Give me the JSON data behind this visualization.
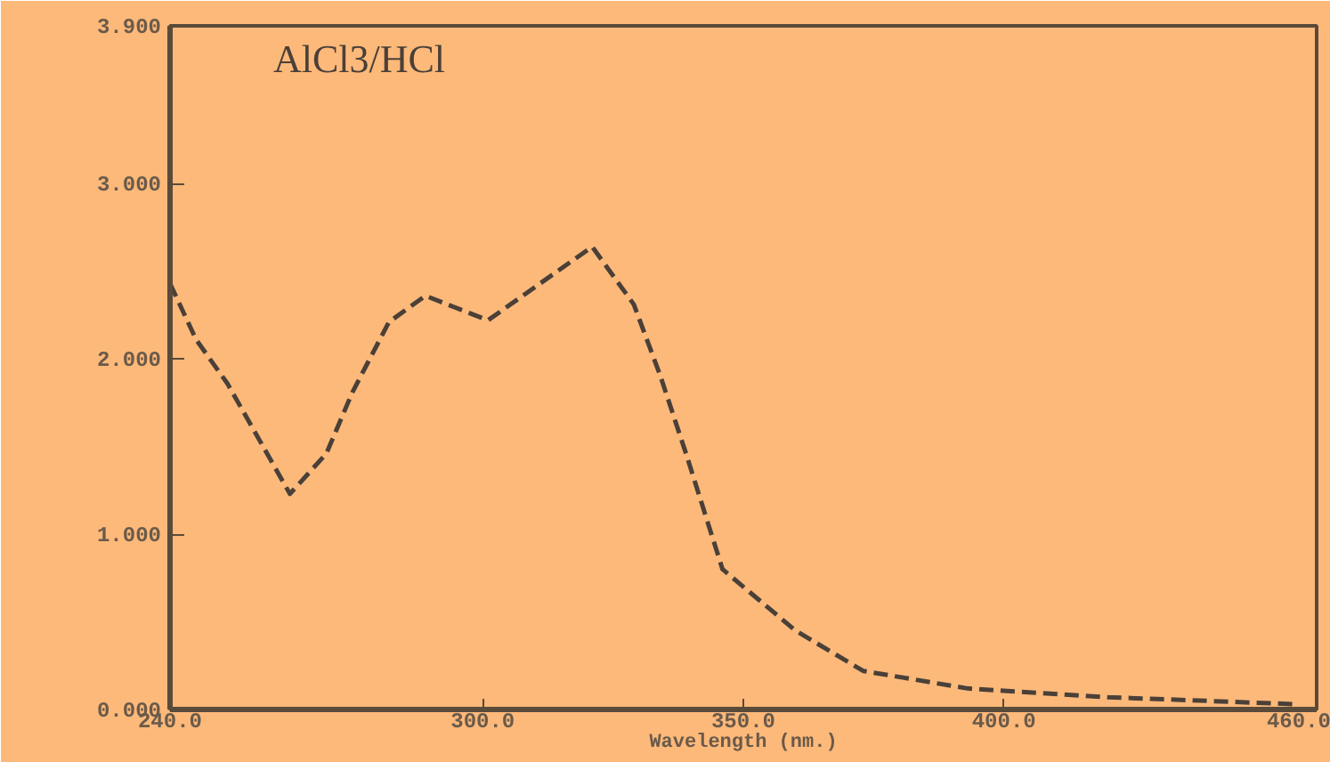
{
  "chart_data": {
    "type": "line",
    "title": "AlCl3/HCl",
    "xlabel": "Wavelength (nm.)",
    "x": [
      240,
      245,
      251,
      263,
      270,
      275,
      282,
      289,
      301,
      321,
      329,
      334,
      339,
      346,
      360,
      373,
      393,
      420,
      456
    ],
    "series": [
      {
        "color": "#4a4038",
        "values": [
          2.43,
          2.11,
          1.86,
          1.23,
          1.46,
          1.81,
          2.21,
          2.36,
          2.22,
          2.64,
          2.31,
          1.91,
          1.46,
          0.8,
          0.45,
          0.22,
          0.12,
          0.07,
          0.03
        ]
      }
    ],
    "xlim": [
      240,
      460
    ],
    "ylim": [
      0,
      3.9
    ],
    "xticks": [
      {
        "value": 240,
        "label": "240.0"
      },
      {
        "value": 300,
        "label": "300.0"
      },
      {
        "value": 350,
        "label": "350.0"
      },
      {
        "value": 400,
        "label": "400.0"
      },
      {
        "value": 460,
        "label": "460.0"
      }
    ],
    "yticks": [
      {
        "value": 0,
        "label": "0.000"
      },
      {
        "value": 1,
        "label": "1.000"
      },
      {
        "value": 2,
        "label": "2.000"
      },
      {
        "value": 3,
        "label": "3.000"
      },
      {
        "value": 3.9,
        "label": "3.900"
      }
    ],
    "grid": false,
    "line_style": "dashed",
    "marker": "none"
  }
}
